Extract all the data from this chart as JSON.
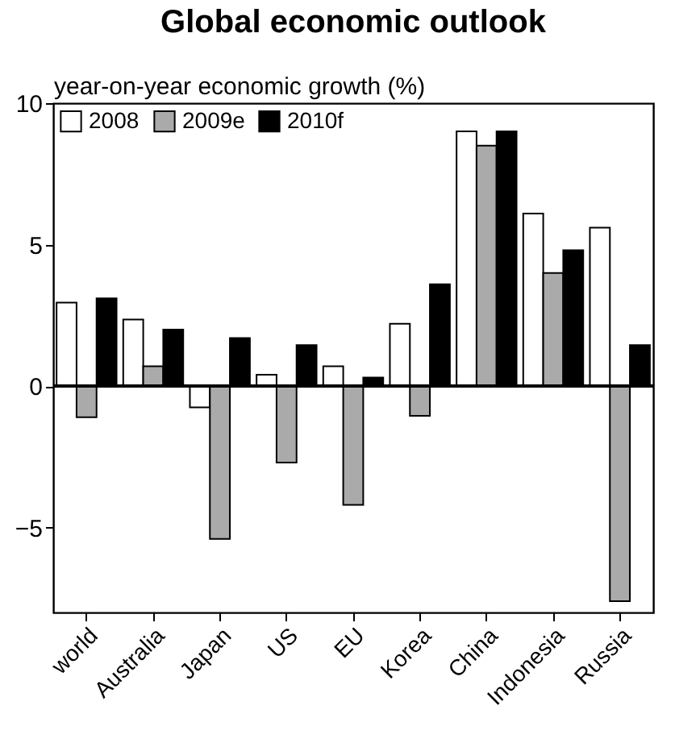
{
  "chart_data": {
    "type": "bar",
    "title": "Global economic outlook",
    "ylabel": "year-on-year economic growth (%)",
    "categories": [
      "world",
      "Australia",
      "Japan",
      "US",
      "EU",
      "Korea",
      "China",
      "Indonesia",
      "Russia"
    ],
    "series": [
      {
        "name": "2008",
        "color": "#ffffff",
        "values": [
          2.95,
          2.35,
          -0.75,
          0.4,
          0.7,
          2.2,
          9.0,
          6.1,
          5.6
        ]
      },
      {
        "name": "2009e",
        "color": "#aaaaaa",
        "values": [
          -1.1,
          0.7,
          -5.4,
          -2.7,
          -4.2,
          -1.05,
          8.5,
          4.0,
          -7.6
        ]
      },
      {
        "name": "2010f",
        "color": "#000000",
        "values": [
          3.1,
          2.0,
          1.7,
          1.45,
          0.3,
          3.6,
          9.0,
          4.8,
          1.45
        ]
      }
    ],
    "ylim": [
      -8,
      10
    ],
    "yticks": [
      -5,
      0,
      5,
      10
    ],
    "legend": "top left"
  }
}
